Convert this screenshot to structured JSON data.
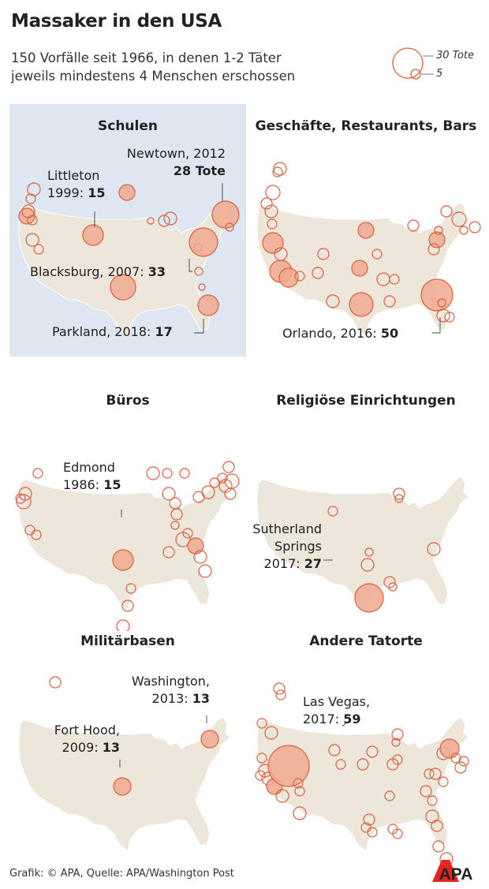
{
  "title": "Massaker in den USA",
  "subtitle_line1": "150 Vorfälle seit 1966, in denen 1-2 Täter",
  "subtitle_line2": "jeweils mindestens 4 Menschen erschossen",
  "legend": {
    "large": "30 Tote",
    "small": "5"
  },
  "colors": {
    "marker_fill": "#f0a98f",
    "marker_stroke": "#d9603f",
    "land": "#ede6da",
    "highlight_bg": "#dde6f1"
  },
  "panels": [
    {
      "id": "schulen",
      "title": "Schulen",
      "highlighted": true,
      "annotations": [
        {
          "place": "Newtown, 2012",
          "value": "28 Tote",
          "victims": 28
        },
        {
          "place": "Littleton",
          "year": "1999:",
          "value": "15",
          "victims": 15
        },
        {
          "place": "Blacksburg, 2007:",
          "value": "33",
          "victims": 33
        },
        {
          "place": "Parkland, 2018:",
          "value": "17",
          "victims": 17
        }
      ]
    },
    {
      "id": "geschaefte",
      "title": "Geschäfte, Restaurants, Bars",
      "annotations": [
        {
          "place": "Orlando, 2016:",
          "value": "50",
          "victims": 50
        }
      ]
    },
    {
      "id": "bueros",
      "title": "Büros",
      "annotations": [
        {
          "place": "Edmond",
          "year": "1986:",
          "value": "15",
          "victims": 15
        }
      ]
    },
    {
      "id": "religioes",
      "title": "Religiöse Einrichtungen",
      "annotations": [
        {
          "place": "Sutherland",
          "place2": "Springs",
          "year": "2017:",
          "value": "27",
          "victims": 27
        }
      ]
    },
    {
      "id": "militaer",
      "title": "Militärbasen",
      "annotations": [
        {
          "place": "Washington,",
          "year": "2013:",
          "value": "13",
          "victims": 13
        },
        {
          "place": "Fort Hood,",
          "year": "2009:",
          "value": "13",
          "victims": 13
        }
      ]
    },
    {
      "id": "andere",
      "title": "Andere Tatorte",
      "annotations": [
        {
          "place": "Las Vegas,",
          "year": "2017:",
          "value": "59",
          "victims": 59
        }
      ]
    }
  ],
  "footer": "Grafik: © APA, Quelle: APA/Washington Post",
  "logo": "APA"
}
